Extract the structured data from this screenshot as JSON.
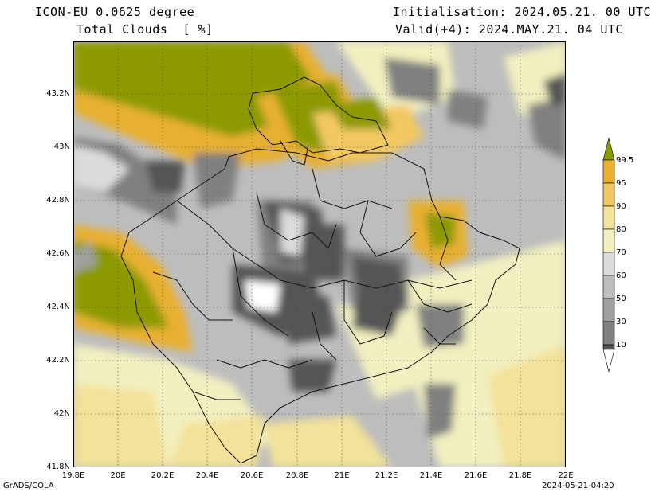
{
  "header": {
    "model": "ICON-EU 0.0625 degree",
    "field": "Total Clouds  [ %]",
    "init": "Initialisation: 2024.05.21. 00 UTC",
    "valid": "Valid(+4): 2024.MAY.21. 04 UTC"
  },
  "footer": {
    "credit": "GrADS/COLA",
    "stamp": "2024-05-21-04:20"
  },
  "axes": {
    "lat_labels": [
      "43.2N",
      "43N",
      "42.8N",
      "42.6N",
      "42.4N",
      "42.2N",
      "42N",
      "41.8N"
    ],
    "lon_labels": [
      "19.8E",
      "20E",
      "20.2E",
      "20.4E",
      "20.6E",
      "20.8E",
      "21E",
      "21.2E",
      "21.4E",
      "21.6E",
      "21.8E",
      "22E"
    ]
  },
  "colorbar": {
    "labels": [
      "99.5",
      "95",
      "90",
      "80",
      "70",
      "60",
      "50",
      "30",
      "10"
    ],
    "colors": [
      "#8c9a00",
      "#e8b030",
      "#f0c860",
      "#f2e29a",
      "#f2f0c0",
      "#dcdcdc",
      "#bdbdbd",
      "#a0a0a0",
      "#808080",
      "#555555",
      "#ffffff"
    ]
  }
}
